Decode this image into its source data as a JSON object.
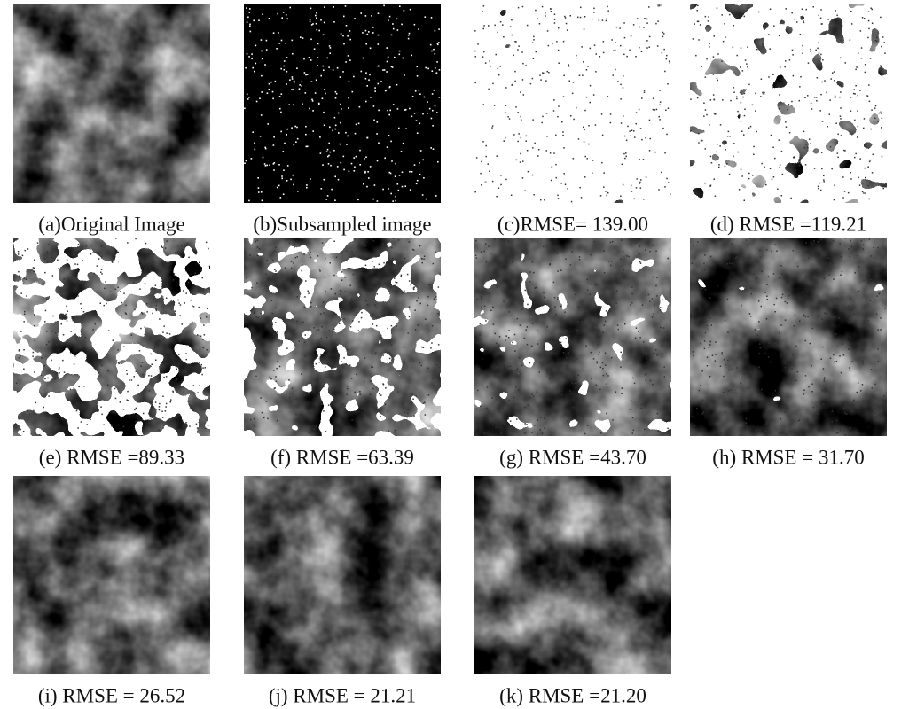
{
  "figure": {
    "panels": [
      {
        "caption": "(a)Original Image"
      },
      {
        "caption": "(b)Subsampled image"
      },
      {
        "caption": "(c)RMSE= 139.00"
      },
      {
        "caption": "(d) RMSE =119.21"
      },
      {
        "caption": "(e) RMSE =89.33"
      },
      {
        "caption": "(f) RMSE =63.39"
      },
      {
        "caption": "(g) RMSE =43.70"
      },
      {
        "caption": "(h) RMSE = 31.70"
      },
      {
        "caption": "(i) RMSE = 26.52"
      },
      {
        "caption": "(j) RMSE = 21.21"
      },
      {
        "caption": "(k) RMSE =21.20"
      }
    ]
  }
}
